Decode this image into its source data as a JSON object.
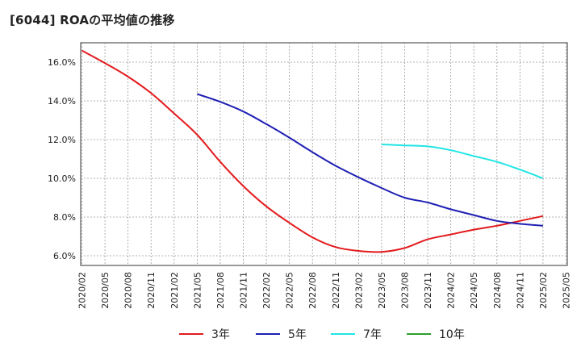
{
  "chart_data": {
    "type": "line",
    "title": "[6044]  ROAの平均値の推移",
    "ylim": [
      5.5,
      17.0
    ],
    "y_ticks": [
      6.0,
      8.0,
      10.0,
      12.0,
      14.0,
      16.0
    ],
    "y_tick_labels": [
      "6.0%",
      "8.0%",
      "10.0%",
      "12.0%",
      "14.0%",
      "16.0%"
    ],
    "x_ticks": [
      "2020/02",
      "2020/05",
      "2020/08",
      "2020/11",
      "2021/02",
      "2021/05",
      "2021/08",
      "2021/11",
      "2022/02",
      "2022/05",
      "2022/08",
      "2022/11",
      "2023/02",
      "2023/05",
      "2023/08",
      "2023/11",
      "2024/02",
      "2024/05",
      "2024/08",
      "2024/11",
      "2025/02",
      "2025/05"
    ],
    "grid": true,
    "legend_position": "bottom",
    "series": [
      {
        "name": "3年",
        "color": "#e31a1c",
        "x": [
          "2020/02",
          "2020/05",
          "2020/08",
          "2020/11",
          "2021/02",
          "2021/05",
          "2021/08",
          "2021/11",
          "2022/02",
          "2022/05",
          "2022/08",
          "2022/11",
          "2023/02",
          "2023/05",
          "2023/08",
          "2023/11",
          "2024/02",
          "2024/05",
          "2024/08",
          "2024/11",
          "2025/02"
        ],
        "values": [
          16.6,
          15.95,
          15.25,
          14.4,
          13.35,
          12.25,
          10.85,
          9.6,
          8.55,
          7.7,
          6.95,
          6.45,
          6.25,
          6.2,
          6.4,
          6.85,
          7.1,
          7.35,
          7.55,
          7.8,
          8.05
        ]
      },
      {
        "name": "5年",
        "color": "#1f1fb4",
        "x": [
          "2021/05",
          "2021/08",
          "2021/11",
          "2022/02",
          "2022/05",
          "2022/08",
          "2022/11",
          "2023/02",
          "2023/05",
          "2023/08",
          "2023/11",
          "2024/02",
          "2024/05",
          "2024/08",
          "2024/11",
          "2025/02"
        ],
        "values": [
          14.35,
          13.95,
          13.45,
          12.8,
          12.1,
          11.35,
          10.65,
          10.05,
          9.5,
          9.0,
          8.75,
          8.4,
          8.1,
          7.8,
          7.65,
          7.55
        ]
      },
      {
        "name": "7年",
        "color": "#22e5e5",
        "x": [
          "2023/05",
          "2023/08",
          "2023/11",
          "2024/02",
          "2024/05",
          "2024/08",
          "2024/11",
          "2025/02"
        ],
        "values": [
          11.75,
          11.7,
          11.65,
          11.45,
          11.15,
          10.85,
          10.45,
          10.0
        ]
      },
      {
        "name": "10年",
        "color": "#2ca02c",
        "x": [],
        "values": []
      }
    ]
  }
}
